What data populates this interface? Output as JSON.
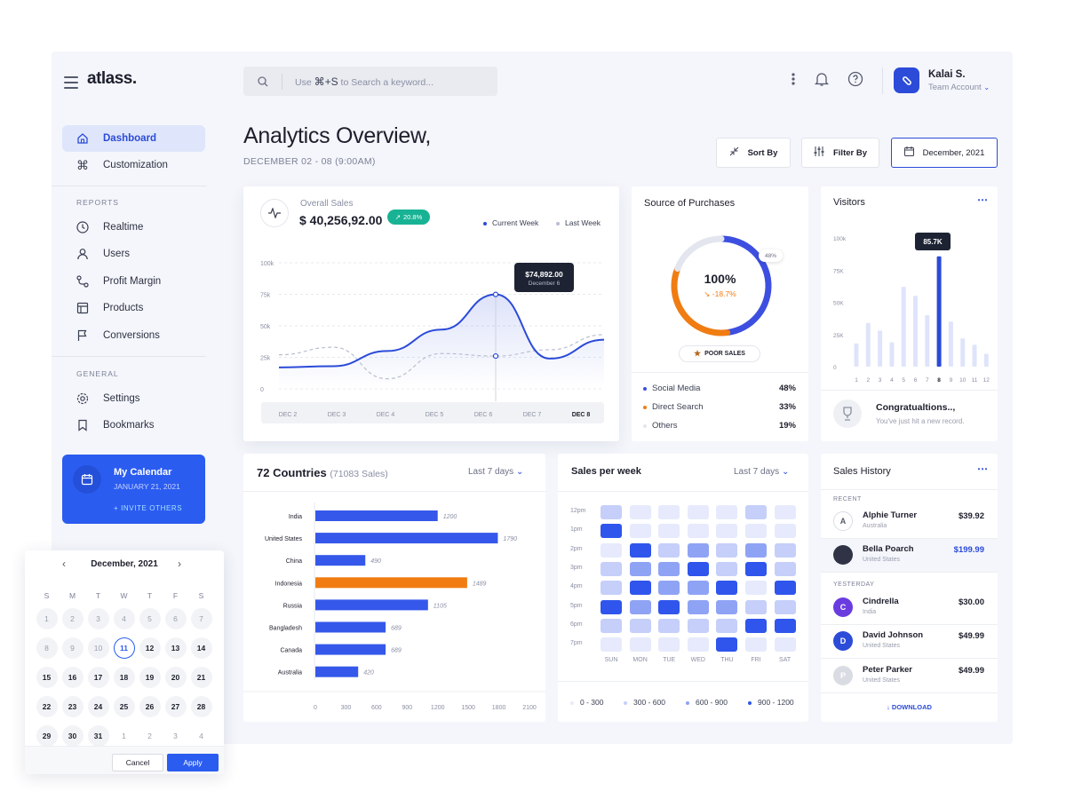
{
  "app": {
    "brand": "atlass."
  },
  "search": {
    "prefix": "Use",
    "shortcut": "⌘+S",
    "suffix": "to Search a keyword..."
  },
  "user": {
    "name": "Kalai S.",
    "role": "Team Account"
  },
  "sidebar": {
    "main": [
      {
        "label": "Dashboard",
        "icon": "home-icon"
      },
      {
        "label": "Customization",
        "icon": "command-icon"
      }
    ],
    "reports_label": "REPORTS",
    "reports": [
      {
        "label": "Realtime",
        "icon": "clock-icon"
      },
      {
        "label": "Users",
        "icon": "user-icon"
      },
      {
        "label": "Profit Margin",
        "icon": "route-icon"
      },
      {
        "label": "Products",
        "icon": "layout-icon"
      },
      {
        "label": "Conversions",
        "icon": "flag-icon"
      }
    ],
    "general_label": "GENERAL",
    "general": [
      {
        "label": "Settings",
        "icon": "gear-icon"
      },
      {
        "label": "Bookmarks",
        "icon": "bookmark-icon"
      }
    ],
    "calendar_card": {
      "title": "My Calendar",
      "date": "JANUARY 21, 2021",
      "invite": "+ INVITE OTHERS"
    }
  },
  "calendar_popup": {
    "month": "December, 2021",
    "dow": [
      "S",
      "M",
      "T",
      "W",
      "T",
      "F",
      "S"
    ],
    "weeks": [
      [
        "1",
        "2",
        "3",
        "4",
        "5",
        "6",
        "7"
      ],
      [
        "8",
        "9",
        "10",
        "11",
        "12",
        "13",
        "14"
      ],
      [
        "15",
        "16",
        "17",
        "18",
        "19",
        "20",
        "21"
      ],
      [
        "22",
        "23",
        "24",
        "25",
        "26",
        "27",
        "28"
      ],
      [
        "29",
        "30",
        "31",
        "1",
        "2",
        "3",
        "4"
      ]
    ],
    "selected": "11",
    "cancel": "Cancel",
    "apply": "Apply"
  },
  "header": {
    "title": "Analytics Overview,",
    "subtitle": "DECEMBER 02 - 08 (9:00AM)",
    "sort": "Sort By",
    "filter": "Filter By",
    "date": "December, 2021"
  },
  "overall_sales": {
    "label": "Overall Sales",
    "value": "$ 40,256,92.00",
    "badge": "20.8%",
    "legend_current": "Current Week",
    "legend_last": "Last Week",
    "tooltip_value": "$74,892.00",
    "tooltip_date": "December 6"
  },
  "source": {
    "title": "Source of Purchases",
    "percent": "100%",
    "change": "-18.7%",
    "badge48": "48%",
    "poor": "POOR SALES",
    "rows": [
      {
        "label": "Social Media",
        "value": "48%",
        "color": "#3d4fe0"
      },
      {
        "label": "Direct Search",
        "value": "33%",
        "color": "#f07c12"
      },
      {
        "label": "Others",
        "value": "19%",
        "color": "#e3e6ee"
      }
    ]
  },
  "visitors": {
    "title": "Visitors",
    "tooltip": "85.7K",
    "congrats_title": "Congratualtions..,",
    "congrats_sub": "You've just hit a new record."
  },
  "countries": {
    "title": "72 Countries",
    "sub": "(71083 Sales)",
    "range": "Last 7 days"
  },
  "sales_week": {
    "title": "Sales per week",
    "range": "Last 7 days",
    "hours": [
      "12pm",
      "1pm",
      "2pm",
      "3pm",
      "4pm",
      "5pm",
      "6pm",
      "7pm"
    ],
    "days": [
      "SUN",
      "MON",
      "TUE",
      "WED",
      "THU",
      "FRI",
      "SAT"
    ],
    "legend": [
      "0 - 300",
      "300 - 600",
      "600 - 900",
      "900 - 1200"
    ],
    "colors": [
      "#e6eafc",
      "#c5cff9",
      "#8fa3f5",
      "#2f55ec"
    ],
    "levels": [
      [
        1,
        0,
        0,
        0,
        0,
        1,
        0
      ],
      [
        3,
        0,
        0,
        0,
        0,
        0,
        0
      ],
      [
        0,
        3,
        1,
        2,
        1,
        2,
        1
      ],
      [
        1,
        2,
        2,
        3,
        1,
        3,
        1
      ],
      [
        1,
        3,
        2,
        2,
        3,
        0,
        3
      ],
      [
        3,
        2,
        3,
        2,
        2,
        1,
        1
      ],
      [
        1,
        1,
        1,
        1,
        1,
        3,
        3
      ],
      [
        0,
        0,
        0,
        0,
        3,
        0,
        0
      ]
    ]
  },
  "sales_history": {
    "title": "Sales History",
    "recent_label": "RECENT",
    "yesterday_label": "YESTERDAY",
    "download": "DOWNLOAD",
    "recent": [
      {
        "initial": "A",
        "name": "Alphie Turner",
        "loc": "Australia",
        "amount": "$39.92"
      },
      {
        "initial": "",
        "name": "Bella Poarch",
        "loc": "United States",
        "amount": "$199.99"
      }
    ],
    "yesterday": [
      {
        "initial": "C",
        "name": "Cindrella",
        "loc": "India",
        "amount": "$30.00"
      },
      {
        "initial": "D",
        "name": "David Johnson",
        "loc": "United States",
        "amount": "$49.99"
      },
      {
        "initial": "P",
        "name": "Peter Parker",
        "loc": "United States",
        "amount": "$49.99"
      }
    ]
  },
  "chart_data": [
    {
      "type": "line",
      "title": "Overall Sales",
      "categories": [
        "DEC 2",
        "DEC 3",
        "DEC 4",
        "DEC 5",
        "DEC 6",
        "DEC 7",
        "DEC 8"
      ],
      "y_ticks": [
        "100k",
        "75k",
        "50k",
        "25k",
        "0"
      ],
      "ylim": [
        0,
        100000
      ],
      "series": [
        {
          "name": "Current Week",
          "values": [
            17000,
            18000,
            30000,
            47000,
            74892,
            24000,
            39000
          ]
        },
        {
          "name": "Last Week",
          "values": [
            27000,
            33000,
            8000,
            28000,
            26000,
            31000,
            43000
          ]
        }
      ]
    },
    {
      "type": "pie",
      "title": "Source of Purchases",
      "labels": [
        "Social Media",
        "Direct Search",
        "Others"
      ],
      "values": [
        48,
        33,
        19
      ]
    },
    {
      "type": "bar",
      "title": "Visitors",
      "categories": [
        "1",
        "2",
        "3",
        "4",
        "5",
        "6",
        "7",
        "8",
        "9",
        "10",
        "11",
        "12"
      ],
      "values": [
        18000,
        34000,
        28000,
        19000,
        62000,
        55000,
        40000,
        85700,
        35000,
        22000,
        17000,
        10000
      ],
      "y_ticks": [
        "100k",
        "75K",
        "50K",
        "25K",
        "0"
      ],
      "ylim": [
        0,
        100000
      ],
      "highlight": "8"
    },
    {
      "type": "bar",
      "orientation": "horizontal",
      "title": "72 Countries",
      "categories": [
        "India",
        "United States",
        "China",
        "Indonesia",
        "Russia",
        "Bangladesh",
        "Canada",
        "Australia"
      ],
      "values": [
        1200,
        1790,
        490,
        1489,
        1105,
        689,
        689,
        420
      ],
      "x_ticks": [
        "0",
        "300",
        "600",
        "900",
        "1200",
        "1500",
        "1800",
        "2100"
      ],
      "xlim": [
        0,
        2100
      ],
      "highlight": "Indonesia"
    }
  ]
}
